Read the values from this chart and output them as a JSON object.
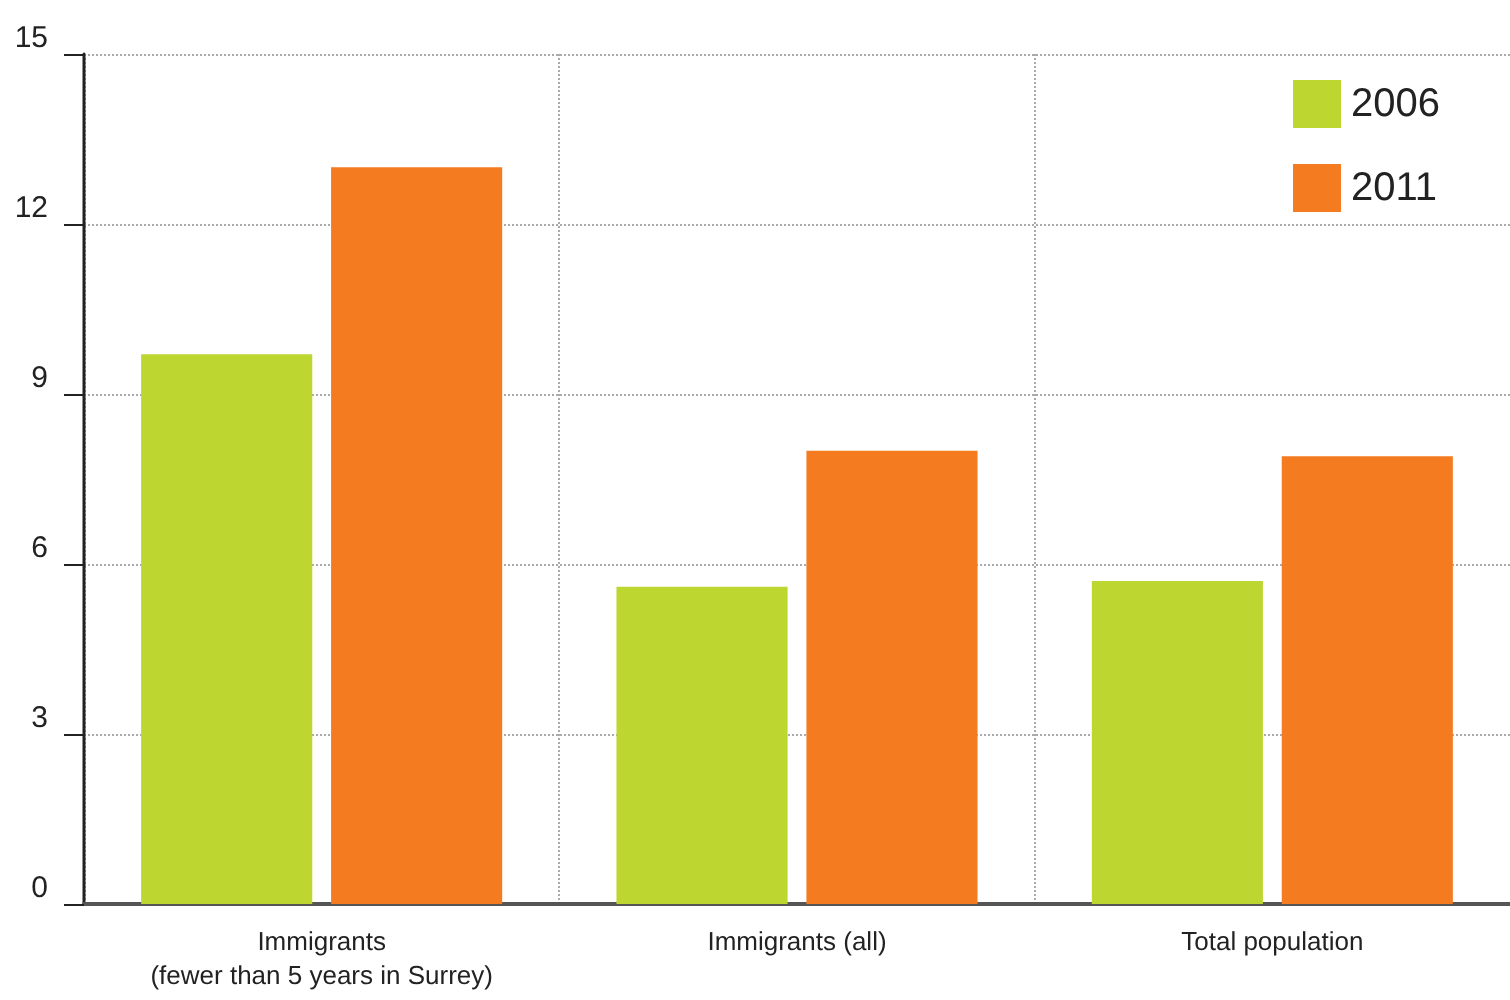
{
  "chart_data": {
    "type": "bar",
    "categories": [
      "Immigrants\n(fewer than 5 years in Surrey)",
      "Immigrants (all)",
      "Total population"
    ],
    "series": [
      {
        "name": "2006",
        "color": "#bdd630",
        "values": [
          9.7,
          5.6,
          5.7
        ]
      },
      {
        "name": "2011",
        "color": "#f47b20",
        "values": [
          13.0,
          8.0,
          7.9
        ]
      }
    ],
    "ylim": [
      0,
      15
    ],
    "yticks": [
      0,
      3,
      6,
      9,
      12,
      15
    ],
    "grid": true,
    "legend": "top right"
  }
}
